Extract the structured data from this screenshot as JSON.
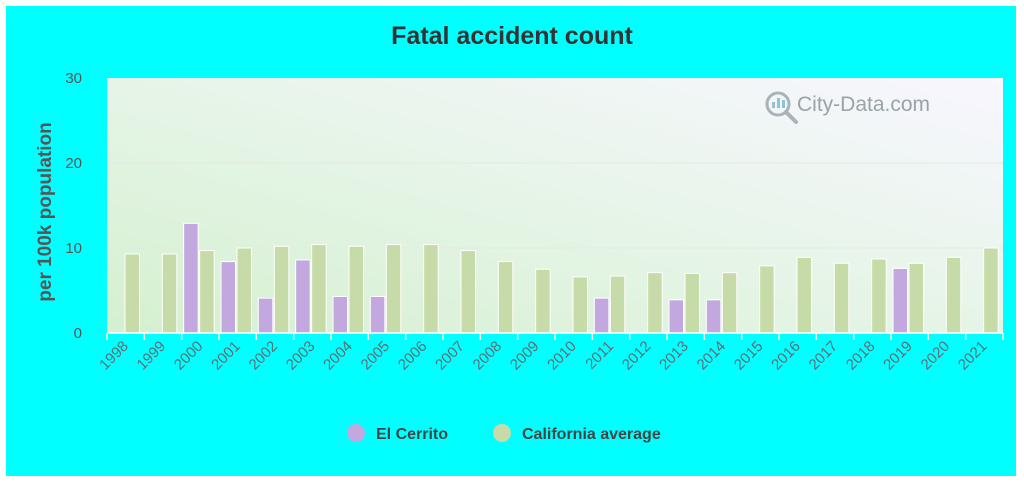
{
  "chart_data": {
    "type": "bar",
    "title": "Fatal accident count",
    "ylabel": "per 100k population",
    "ylim": [
      0,
      30
    ],
    "yticks": [
      0,
      10,
      20,
      30
    ],
    "categories": [
      "1998",
      "1999",
      "2000",
      "2001",
      "2002",
      "2003",
      "2004",
      "2005",
      "2006",
      "2007",
      "2008",
      "2009",
      "2010",
      "2011",
      "2012",
      "2013",
      "2014",
      "2015",
      "2016",
      "2017",
      "2018",
      "2019",
      "2020",
      "2021"
    ],
    "series": [
      {
        "name": "El Cerrito",
        "color": "#c3a8df",
        "values": [
          null,
          null,
          12.9,
          8.4,
          4.1,
          8.6,
          4.3,
          4.3,
          null,
          null,
          null,
          null,
          null,
          4.1,
          null,
          3.9,
          3.9,
          null,
          null,
          null,
          null,
          7.6,
          null,
          null
        ]
      },
      {
        "name": "California average",
        "color": "#c7dba8",
        "values": [
          9.3,
          9.3,
          9.7,
          10.0,
          10.2,
          10.4,
          10.2,
          10.4,
          10.4,
          9.7,
          8.4,
          7.5,
          6.6,
          6.7,
          7.1,
          7.0,
          7.1,
          7.9,
          8.9,
          8.2,
          8.7,
          8.2,
          8.9,
          10.0
        ]
      }
    ],
    "legend_position": "bottom-center",
    "grid": true
  },
  "watermark": {
    "text": "City-Data.com"
  }
}
